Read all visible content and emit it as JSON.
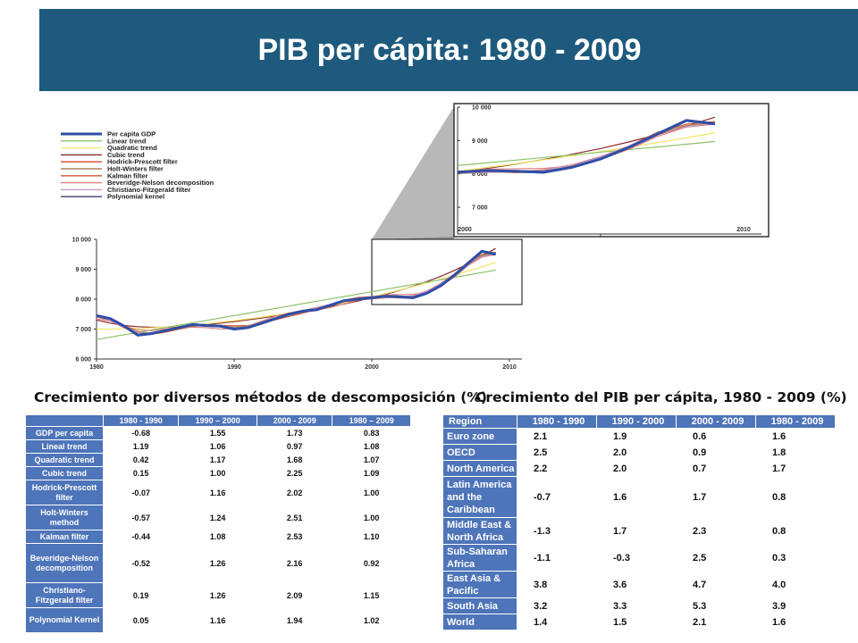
{
  "title": "PIB per cápita: 1980 - 2009",
  "legend": [
    {
      "name": "Per capita GDP",
      "color": "#2f4fa6"
    },
    {
      "name": "Linear trend",
      "color": "#8cc26a"
    },
    {
      "name": "Quadratic trend",
      "color": "#f0e66a"
    },
    {
      "name": "Cubic trend",
      "color": "#8b2a2a"
    },
    {
      "name": "Hodrick-Prescott filter",
      "color": "#d6452f"
    },
    {
      "name": "Holt-Winters filter",
      "color": "#a9865a"
    },
    {
      "name": "Kalman filter",
      "color": "#c85a3a"
    },
    {
      "name": "Beveridge-Nelson decomposition",
      "color": "#e07f7f"
    },
    {
      "name": "Christiano-Fitzgerald filter",
      "color": "#c99bc9"
    },
    {
      "name": "Polynomial kernel",
      "color": "#4a3a6a"
    }
  ],
  "chart_data": [
    {
      "type": "line",
      "x_ticks": [
        "1980",
        "1990",
        "2000",
        "2010"
      ],
      "y_ticks": [
        "6 000",
        "7 000",
        "8 000",
        "9 000",
        "10 000"
      ],
      "ylim": [
        6000,
        10000
      ],
      "xlim": [
        1980,
        2010
      ],
      "x": [
        1980,
        1981,
        1982,
        1983,
        1984,
        1985,
        1986,
        1987,
        1988,
        1989,
        1990,
        1991,
        1992,
        1993,
        1994,
        1995,
        1996,
        1997,
        1998,
        1999,
        2000,
        2001,
        2002,
        2003,
        2004,
        2005,
        2006,
        2007,
        2008,
        2009
      ],
      "series": [
        {
          "name": "Per capita GDP",
          "values": [
            7450,
            7350,
            7100,
            6800,
            6850,
            6950,
            7050,
            7150,
            7120,
            7100,
            7000,
            7050,
            7200,
            7350,
            7500,
            7600,
            7650,
            7800,
            7950,
            8000,
            8050,
            8100,
            8080,
            8050,
            8200,
            8450,
            8800,
            9200,
            9600,
            9500
          ]
        },
        {
          "name": "Linear trend",
          "values": [
            6650,
            6730,
            6810,
            6890,
            6970,
            7050,
            7130,
            7210,
            7290,
            7370,
            7450,
            7530,
            7610,
            7690,
            7770,
            7850,
            7930,
            8010,
            8090,
            8170,
            8250,
            8330,
            8410,
            8490,
            8570,
            8650,
            8730,
            8810,
            8890,
            8970
          ]
        },
        {
          "name": "Quadratic trend",
          "values": [
            7000,
            7000,
            7010,
            7020,
            7040,
            7070,
            7100,
            7140,
            7180,
            7230,
            7280,
            7340,
            7400,
            7470,
            7540,
            7620,
            7700,
            7790,
            7880,
            7980,
            8080,
            8190,
            8300,
            8420,
            8540,
            8670,
            8800,
            8940,
            9080,
            9230
          ]
        },
        {
          "name": "Cubic trend",
          "values": [
            7300,
            7200,
            7120,
            7080,
            7060,
            7060,
            7080,
            7110,
            7150,
            7200,
            7250,
            7310,
            7370,
            7440,
            7510,
            7590,
            7670,
            7750,
            7840,
            7940,
            8050,
            8160,
            8290,
            8430,
            8590,
            8760,
            8960,
            9180,
            9430,
            9700
          ]
        }
      ]
    },
    {
      "type": "line",
      "x_ticks": [
        "2000",
        "2010"
      ],
      "y_ticks": [
        "7 000",
        "8 000",
        "9 000",
        "10 000"
      ],
      "ylim": [
        6200,
        10000
      ],
      "xlim": [
        2000,
        2010
      ]
    }
  ],
  "captions": {
    "left": "Crecimiento por diversos métodos de descomposición  (%)",
    "right": "Crecimiento del PIB per cápita, 1980 - 2009 (%)"
  },
  "decomposition_table": {
    "headers": [
      "",
      "1980 - 1990",
      "1990 – 2000",
      "2000 - 2009",
      "1980 – 2009"
    ],
    "rows": [
      {
        "label": "GDP per capita",
        "values": [
          "-0.68",
          "1.55",
          "1.73",
          "0.83"
        ]
      },
      {
        "label": "Lineal trend",
        "values": [
          "1.19",
          "1.06",
          "0.97",
          "1.08"
        ]
      },
      {
        "label": "Quadratic trend",
        "values": [
          "0.42",
          "1.17",
          "1.68",
          "1.07"
        ]
      },
      {
        "label": "Cubic trend",
        "values": [
          "0.15",
          "1.00",
          "2.25",
          "1.09"
        ]
      },
      {
        "label": "Hodrick-Prescott filter",
        "values": [
          "-0.07",
          "1.16",
          "2.02",
          "1.00"
        ]
      },
      {
        "label": "Holt-Winters method",
        "values": [
          "-0.57",
          "1.24",
          "2.51",
          "1.00"
        ]
      },
      {
        "label": "Kalman filter",
        "values": [
          "-0.44",
          "1.08",
          "2.53",
          "1.10"
        ]
      },
      {
        "label": "Beveridge-Nelson decomposition",
        "values": [
          "-0.52",
          "1.26",
          "2.16",
          "0.92"
        ]
      },
      {
        "label": "Christiano-Fitzgerald filter",
        "values": [
          "0.19",
          "1.26",
          "2.09",
          "1.15"
        ]
      },
      {
        "label": "Polynomial Kernel",
        "values": [
          "0.05",
          "1.16",
          "1.94",
          "1.02"
        ]
      }
    ]
  },
  "region_table": {
    "headers": [
      "Region",
      "1980 - 1990",
      "1990 - 2000",
      "2000 - 2009",
      "1980 - 2009"
    ],
    "rows": [
      {
        "label": "Euro zone",
        "values": [
          "2.1",
          "1.9",
          "0.6",
          "1.6"
        ]
      },
      {
        "label": "OECD",
        "values": [
          "2.5",
          "2.0",
          "0.9",
          "1.8"
        ]
      },
      {
        "label": "North America",
        "values": [
          "2.2",
          "2.0",
          "0.7",
          "1.7"
        ]
      },
      {
        "label": "Latin America and the Caribbean",
        "values": [
          "-0.7",
          "1.6",
          "1.7",
          "0.8"
        ]
      },
      {
        "label": "Middle East & North Africa",
        "values": [
          "-1.3",
          "1.7",
          "2.3",
          "0.8"
        ]
      },
      {
        "label": "Sub-Saharan Africa",
        "values": [
          "-1.1",
          "-0.3",
          "2.5",
          "0.3"
        ]
      },
      {
        "label": "East Asia & Pacific",
        "values": [
          "3.8",
          "3.6",
          "4.7",
          "4.0"
        ]
      },
      {
        "label": "South Asia",
        "values": [
          "3.2",
          "3.3",
          "5.3",
          "3.9"
        ]
      },
      {
        "label": "World",
        "values": [
          "1.4",
          "1.5",
          "2.1",
          "1.6"
        ]
      }
    ]
  }
}
